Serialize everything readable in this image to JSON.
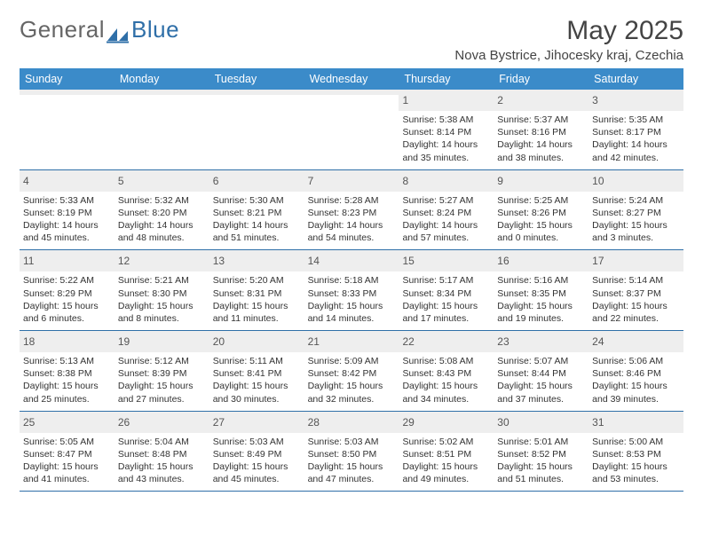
{
  "logo": {
    "word1": "General",
    "word2": "Blue"
  },
  "title": "May 2025",
  "location": "Nova Bystrice, Jihocesky kraj, Czechia",
  "colors": {
    "header_bar": "#3b8bc9",
    "rule": "#2f6fa8",
    "daynum_bg": "#eeeeee",
    "text": "#333333",
    "logo_gray": "#666666",
    "logo_blue": "#2f6fa8"
  },
  "daysOfWeek": [
    "Sunday",
    "Monday",
    "Tuesday",
    "Wednesday",
    "Thursday",
    "Friday",
    "Saturday"
  ],
  "weeks": [
    [
      {
        "n": "",
        "sr": "",
        "ss": "",
        "dl": ""
      },
      {
        "n": "",
        "sr": "",
        "ss": "",
        "dl": ""
      },
      {
        "n": "",
        "sr": "",
        "ss": "",
        "dl": ""
      },
      {
        "n": "",
        "sr": "",
        "ss": "",
        "dl": ""
      },
      {
        "n": "1",
        "sr": "Sunrise: 5:38 AM",
        "ss": "Sunset: 8:14 PM",
        "dl": "Daylight: 14 hours and 35 minutes."
      },
      {
        "n": "2",
        "sr": "Sunrise: 5:37 AM",
        "ss": "Sunset: 8:16 PM",
        "dl": "Daylight: 14 hours and 38 minutes."
      },
      {
        "n": "3",
        "sr": "Sunrise: 5:35 AM",
        "ss": "Sunset: 8:17 PM",
        "dl": "Daylight: 14 hours and 42 minutes."
      }
    ],
    [
      {
        "n": "4",
        "sr": "Sunrise: 5:33 AM",
        "ss": "Sunset: 8:19 PM",
        "dl": "Daylight: 14 hours and 45 minutes."
      },
      {
        "n": "5",
        "sr": "Sunrise: 5:32 AM",
        "ss": "Sunset: 8:20 PM",
        "dl": "Daylight: 14 hours and 48 minutes."
      },
      {
        "n": "6",
        "sr": "Sunrise: 5:30 AM",
        "ss": "Sunset: 8:21 PM",
        "dl": "Daylight: 14 hours and 51 minutes."
      },
      {
        "n": "7",
        "sr": "Sunrise: 5:28 AM",
        "ss": "Sunset: 8:23 PM",
        "dl": "Daylight: 14 hours and 54 minutes."
      },
      {
        "n": "8",
        "sr": "Sunrise: 5:27 AM",
        "ss": "Sunset: 8:24 PM",
        "dl": "Daylight: 14 hours and 57 minutes."
      },
      {
        "n": "9",
        "sr": "Sunrise: 5:25 AM",
        "ss": "Sunset: 8:26 PM",
        "dl": "Daylight: 15 hours and 0 minutes."
      },
      {
        "n": "10",
        "sr": "Sunrise: 5:24 AM",
        "ss": "Sunset: 8:27 PM",
        "dl": "Daylight: 15 hours and 3 minutes."
      }
    ],
    [
      {
        "n": "11",
        "sr": "Sunrise: 5:22 AM",
        "ss": "Sunset: 8:29 PM",
        "dl": "Daylight: 15 hours and 6 minutes."
      },
      {
        "n": "12",
        "sr": "Sunrise: 5:21 AM",
        "ss": "Sunset: 8:30 PM",
        "dl": "Daylight: 15 hours and 8 minutes."
      },
      {
        "n": "13",
        "sr": "Sunrise: 5:20 AM",
        "ss": "Sunset: 8:31 PM",
        "dl": "Daylight: 15 hours and 11 minutes."
      },
      {
        "n": "14",
        "sr": "Sunrise: 5:18 AM",
        "ss": "Sunset: 8:33 PM",
        "dl": "Daylight: 15 hours and 14 minutes."
      },
      {
        "n": "15",
        "sr": "Sunrise: 5:17 AM",
        "ss": "Sunset: 8:34 PM",
        "dl": "Daylight: 15 hours and 17 minutes."
      },
      {
        "n": "16",
        "sr": "Sunrise: 5:16 AM",
        "ss": "Sunset: 8:35 PM",
        "dl": "Daylight: 15 hours and 19 minutes."
      },
      {
        "n": "17",
        "sr": "Sunrise: 5:14 AM",
        "ss": "Sunset: 8:37 PM",
        "dl": "Daylight: 15 hours and 22 minutes."
      }
    ],
    [
      {
        "n": "18",
        "sr": "Sunrise: 5:13 AM",
        "ss": "Sunset: 8:38 PM",
        "dl": "Daylight: 15 hours and 25 minutes."
      },
      {
        "n": "19",
        "sr": "Sunrise: 5:12 AM",
        "ss": "Sunset: 8:39 PM",
        "dl": "Daylight: 15 hours and 27 minutes."
      },
      {
        "n": "20",
        "sr": "Sunrise: 5:11 AM",
        "ss": "Sunset: 8:41 PM",
        "dl": "Daylight: 15 hours and 30 minutes."
      },
      {
        "n": "21",
        "sr": "Sunrise: 5:09 AM",
        "ss": "Sunset: 8:42 PM",
        "dl": "Daylight: 15 hours and 32 minutes."
      },
      {
        "n": "22",
        "sr": "Sunrise: 5:08 AM",
        "ss": "Sunset: 8:43 PM",
        "dl": "Daylight: 15 hours and 34 minutes."
      },
      {
        "n": "23",
        "sr": "Sunrise: 5:07 AM",
        "ss": "Sunset: 8:44 PM",
        "dl": "Daylight: 15 hours and 37 minutes."
      },
      {
        "n": "24",
        "sr": "Sunrise: 5:06 AM",
        "ss": "Sunset: 8:46 PM",
        "dl": "Daylight: 15 hours and 39 minutes."
      }
    ],
    [
      {
        "n": "25",
        "sr": "Sunrise: 5:05 AM",
        "ss": "Sunset: 8:47 PM",
        "dl": "Daylight: 15 hours and 41 minutes."
      },
      {
        "n": "26",
        "sr": "Sunrise: 5:04 AM",
        "ss": "Sunset: 8:48 PM",
        "dl": "Daylight: 15 hours and 43 minutes."
      },
      {
        "n": "27",
        "sr": "Sunrise: 5:03 AM",
        "ss": "Sunset: 8:49 PM",
        "dl": "Daylight: 15 hours and 45 minutes."
      },
      {
        "n": "28",
        "sr": "Sunrise: 5:03 AM",
        "ss": "Sunset: 8:50 PM",
        "dl": "Daylight: 15 hours and 47 minutes."
      },
      {
        "n": "29",
        "sr": "Sunrise: 5:02 AM",
        "ss": "Sunset: 8:51 PM",
        "dl": "Daylight: 15 hours and 49 minutes."
      },
      {
        "n": "30",
        "sr": "Sunrise: 5:01 AM",
        "ss": "Sunset: 8:52 PM",
        "dl": "Daylight: 15 hours and 51 minutes."
      },
      {
        "n": "31",
        "sr": "Sunrise: 5:00 AM",
        "ss": "Sunset: 8:53 PM",
        "dl": "Daylight: 15 hours and 53 minutes."
      }
    ]
  ]
}
